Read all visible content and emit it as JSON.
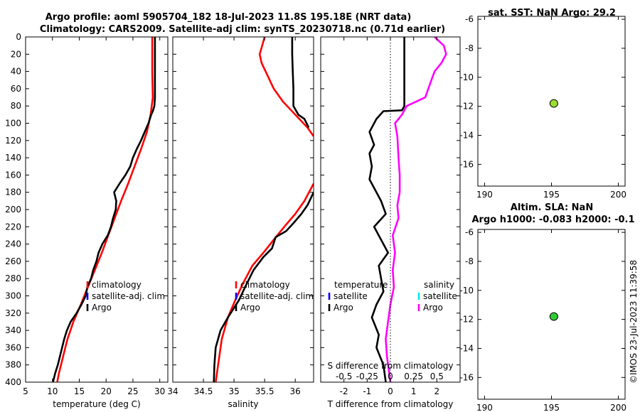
{
  "header": {
    "line1": "Argo profile: aoml 5905704_182 18-Jul-2023 11.8S 195.18E (NRT data)",
    "line2": "Climatology: CARS2009. Satellite-adj clim: synTS_20230718.nc (0.71d earlier)"
  },
  "footer": {
    "stamp": "©IMOS 23-Jul-2023 11:39:58"
  },
  "colors": {
    "climatology": "#ff0000",
    "satellite": "#0000ff",
    "argo": "#000000",
    "sal_satellite": "#00e5ee",
    "sal_argo": "#ff00ff",
    "marker_top": "#99dd33",
    "marker_bottom": "#33cc33"
  },
  "chart_data": [
    {
      "id": "temperature",
      "type": "line",
      "xlabel": "temperature (deg C)",
      "xlim": [
        5,
        31.5
      ],
      "xticks": [
        5,
        10,
        15,
        20,
        25,
        30
      ],
      "ylim": [
        0,
        400
      ],
      "yticks": [
        0,
        20,
        40,
        60,
        80,
        100,
        120,
        140,
        160,
        180,
        200,
        220,
        240,
        260,
        280,
        300,
        320,
        340,
        360,
        380,
        400
      ],
      "legend": [
        "climatology",
        "satellite-adj. clim",
        "Argo"
      ],
      "series": [
        {
          "name": "climatology",
          "color": "#ff0000",
          "points": [
            [
              28.6,
              0
            ],
            [
              28.6,
              40
            ],
            [
              28.7,
              70
            ],
            [
              28.3,
              90
            ],
            [
              27.6,
              110
            ],
            [
              26.5,
              130
            ],
            [
              25.3,
              150
            ],
            [
              24.1,
              170
            ],
            [
              22.8,
              190
            ],
            [
              21.6,
              210
            ],
            [
              20.4,
              230
            ],
            [
              19.2,
              250
            ],
            [
              17.9,
              270
            ],
            [
              16.6,
              290
            ],
            [
              15.3,
              310
            ],
            [
              13.9,
              330
            ],
            [
              12.8,
              350
            ],
            [
              12.0,
              370
            ],
            [
              11.2,
              390
            ],
            [
              10.9,
              400
            ]
          ]
        },
        {
          "name": "Argo",
          "color": "#000000",
          "points": [
            [
              29.1,
              0
            ],
            [
              29.1,
              40
            ],
            [
              29.1,
              70
            ],
            [
              29.0,
              80
            ],
            [
              28.7,
              86
            ],
            [
              28.4,
              90
            ],
            [
              27.9,
              100
            ],
            [
              27.2,
              110
            ],
            [
              26.5,
              120
            ],
            [
              25.7,
              130
            ],
            [
              25.0,
              140
            ],
            [
              24.5,
              150
            ],
            [
              23.6,
              160
            ],
            [
              22.5,
              170
            ],
            [
              21.5,
              180
            ],
            [
              21.9,
              190
            ],
            [
              21.8,
              200
            ],
            [
              21.3,
              210
            ],
            [
              20.9,
              220
            ],
            [
              20.3,
              230
            ],
            [
              19.3,
              240
            ],
            [
              18.6,
              250
            ],
            [
              18.2,
              260
            ],
            [
              17.6,
              270
            ],
            [
              17.2,
              280
            ],
            [
              16.5,
              290
            ],
            [
              16.2,
              300
            ],
            [
              15.4,
              310
            ],
            [
              14.5,
              320
            ],
            [
              13.4,
              330
            ],
            [
              12.7,
              340
            ],
            [
              12.2,
              350
            ],
            [
              11.8,
              360
            ],
            [
              11.4,
              370
            ],
            [
              11.0,
              380
            ],
            [
              10.5,
              390
            ],
            [
              10.1,
              400
            ]
          ]
        }
      ]
    },
    {
      "id": "salinity",
      "type": "line",
      "xlabel": "salinity",
      "xlim": [
        34,
        36.3
      ],
      "xticks": [
        34,
        34.5,
        35,
        35.5,
        36
      ],
      "ylim": [
        0,
        400
      ],
      "legend": [
        "climatology",
        "satellite-adj. clim",
        "Argo"
      ],
      "series": [
        {
          "name": "climatology",
          "color": "#ff0000",
          "points": [
            [
              35.5,
              0
            ],
            [
              35.46,
              10
            ],
            [
              35.42,
              20
            ],
            [
              35.45,
              30
            ],
            [
              35.55,
              45
            ],
            [
              35.65,
              60
            ],
            [
              35.8,
              75
            ],
            [
              36.0,
              90
            ],
            [
              36.2,
              105
            ],
            [
              36.3,
              115
            ],
            [
              null,
              null
            ],
            [
              36.3,
              170
            ],
            [
              36.15,
              190
            ],
            [
              36.0,
              205
            ],
            [
              35.82,
              220
            ],
            [
              35.65,
              235
            ],
            [
              35.48,
              250
            ],
            [
              35.3,
              265
            ],
            [
              35.15,
              285
            ],
            [
              35.02,
              305
            ],
            [
              34.9,
              325
            ],
            [
              34.8,
              350
            ],
            [
              34.75,
              375
            ],
            [
              34.7,
              400
            ]
          ]
        },
        {
          "name": "Argo",
          "color": "#000000",
          "points": [
            [
              35.95,
              0
            ],
            [
              35.95,
              20
            ],
            [
              35.96,
              40
            ],
            [
              35.97,
              60
            ],
            [
              35.97,
              80
            ],
            [
              36.05,
              90
            ],
            [
              36.15,
              95
            ],
            [
              36.22,
              105
            ],
            [
              null,
              null
            ],
            [
              36.3,
              180
            ],
            [
              36.2,
              195
            ],
            [
              36.1,
              205
            ],
            [
              35.98,
              215
            ],
            [
              35.85,
              225
            ],
            [
              35.68,
              232
            ],
            [
              35.62,
              245
            ],
            [
              35.48,
              255
            ],
            [
              35.32,
              270
            ],
            [
              35.18,
              290
            ],
            [
              35.08,
              305
            ],
            [
              34.9,
              325
            ],
            [
              34.78,
              340
            ],
            [
              34.7,
              360
            ],
            [
              34.68,
              380
            ],
            [
              34.67,
              400
            ]
          ]
        }
      ]
    },
    {
      "id": "difference",
      "type": "line",
      "xlabel": "T difference from climatology",
      "xlabel_top": "S difference from climatology",
      "xlim": [
        -3,
        3
      ],
      "xticks": [
        -2,
        -1,
        0,
        1,
        2
      ],
      "xticks_top_labels": [
        "-0.5",
        "-0.25",
        "0",
        "0.25",
        "0.5"
      ],
      "ylim": [
        0,
        400
      ],
      "legend_left_title": "temperature",
      "legend_right_title": "salinity",
      "legend": [
        "satellite",
        "Argo"
      ],
      "series": [
        {
          "name": "T Argo",
          "color": "#000000",
          "points": [
            [
              0.6,
              0
            ],
            [
              0.6,
              20
            ],
            [
              0.6,
              40
            ],
            [
              0.6,
              60
            ],
            [
              0.6,
              80
            ],
            [
              0.5,
              85
            ],
            [
              -0.3,
              86
            ],
            [
              -0.6,
              95
            ],
            [
              -0.9,
              110
            ],
            [
              -0.7,
              125
            ],
            [
              -0.9,
              135
            ],
            [
              -0.8,
              150
            ],
            [
              -0.9,
              165
            ],
            [
              -0.7,
              175
            ],
            [
              -0.4,
              190
            ],
            [
              -0.2,
              205
            ],
            [
              -0.7,
              220
            ],
            [
              -0.4,
              235
            ],
            [
              -0.1,
              250
            ],
            [
              -0.5,
              265
            ],
            [
              -0.4,
              280
            ],
            [
              -0.3,
              295
            ],
            [
              -0.6,
              310
            ],
            [
              -0.8,
              325
            ],
            [
              -0.5,
              345
            ],
            [
              -0.6,
              360
            ],
            [
              -0.3,
              380
            ],
            [
              -0.2,
              400
            ]
          ]
        },
        {
          "name": "S Argo",
          "color": "#ff00ff",
          "points": [
            [
              1.9,
              0
            ],
            [
              2.3,
              10
            ],
            [
              2.4,
              20
            ],
            [
              2.2,
              30
            ],
            [
              1.9,
              40
            ],
            [
              1.7,
              55
            ],
            [
              1.5,
              70
            ],
            [
              0.7,
              80
            ],
            [
              0.5,
              90
            ],
            [
              0.2,
              100
            ],
            [
              0.3,
              115
            ],
            [
              0.35,
              140
            ],
            [
              0.4,
              160
            ],
            [
              0.4,
              180
            ],
            [
              0.3,
              195
            ],
            [
              0.35,
              210
            ],
            [
              0.1,
              230
            ],
            [
              0.2,
              250
            ],
            [
              0.1,
              270
            ],
            [
              0.15,
              290
            ],
            [
              0.0,
              310
            ],
            [
              -0.1,
              330
            ],
            [
              -0.2,
              350
            ],
            [
              -0.15,
              370
            ],
            [
              -0.05,
              390
            ],
            [
              0.0,
              400
            ]
          ]
        }
      ]
    },
    {
      "id": "sst",
      "type": "scatter",
      "title": "sat. SST: NaN Argo: 29.2",
      "xlim": [
        189.5,
        200.5
      ],
      "xticks": [
        190,
        195,
        200
      ],
      "ylim": [
        -17.5,
        -5.8
      ],
      "yticks": [
        -6,
        -8,
        -10,
        -12,
        -14,
        -16
      ],
      "points": [
        [
          195.18,
          -11.8
        ]
      ]
    },
    {
      "id": "sla",
      "type": "scatter",
      "title": "Altim. SLA: NaN",
      "subtitle": "Argo h1000: -0.083 h2000: -0.1",
      "xlim": [
        189.5,
        200.5
      ],
      "xticks": [
        190,
        195,
        200
      ],
      "ylim": [
        -17.5,
        -5.8
      ],
      "yticks": [
        -6,
        -8,
        -10,
        -12,
        -14,
        -16
      ],
      "points": [
        [
          195.18,
          -11.8
        ]
      ]
    }
  ]
}
